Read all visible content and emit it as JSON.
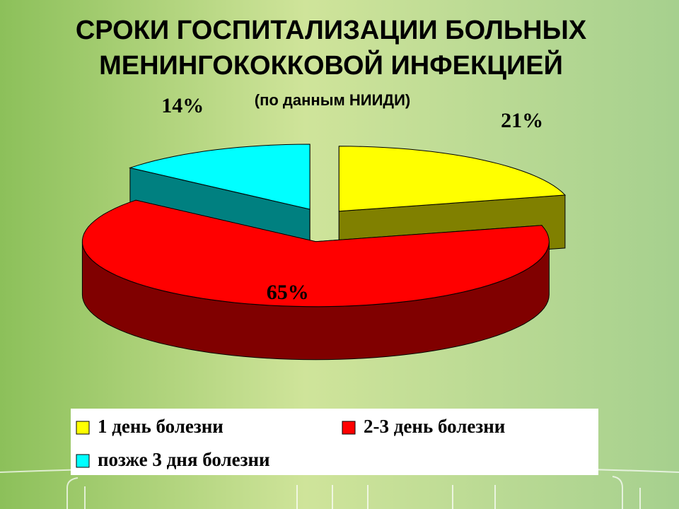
{
  "chart_data": {
    "type": "pie",
    "three_d": true,
    "exploded": true,
    "title": [
      "СРОКИ ГОСПИТАЛИЗАЦИИ БОЛЬНЫХ",
      "МЕНИНГОКОККОВОЙ ИНФЕКЦИЕЙ"
    ],
    "subtitle": "(по данным НИИДИ)",
    "categories": [
      "1 день болезни",
      "2-3 день болезни",
      "позже 3 дня болезни"
    ],
    "values": [
      21,
      65,
      14
    ],
    "value_labels": [
      "21%",
      "65%",
      "14%"
    ],
    "colors": [
      "#ffff00",
      "#ff0000",
      "#00ffff"
    ],
    "side_colors": [
      "#808000",
      "#800000",
      "#008080"
    ],
    "legend": "bottom"
  }
}
